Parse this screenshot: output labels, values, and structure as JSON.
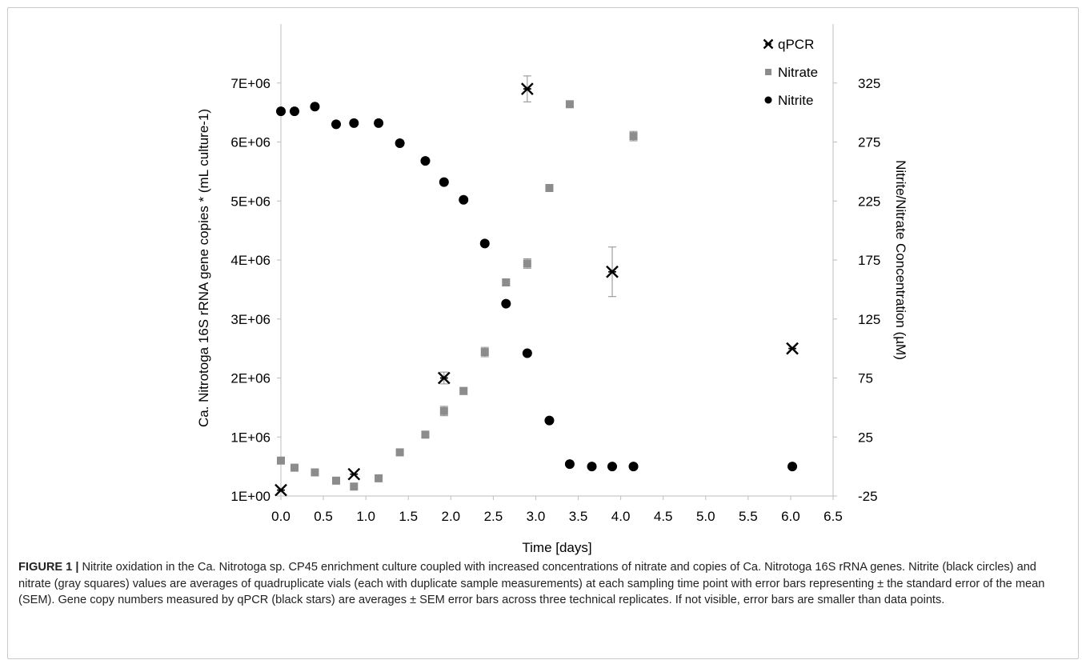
{
  "chart_data": {
    "type": "scatter",
    "xlabel": "Time [days]",
    "ylabel_left": "Ca. Nitrotoga 16S rRNA gene copies * (mL culture-1)",
    "ylabel_right": "Nitrite/Nitrate Concentration (µM)",
    "xlim": [
      0.0,
      6.5
    ],
    "x_ticks": [
      "0.0",
      "0.5",
      "1.0",
      "1.5",
      "2.0",
      "2.5",
      "3.0",
      "3.5",
      "4.0",
      "4.5",
      "5.0",
      "5.5",
      "6.0",
      "6.5"
    ],
    "ylim_left": [
      1,
      8000000
    ],
    "y_ticks_left": [
      "1E+00",
      "1E+06",
      "2E+06",
      "3E+06",
      "4E+06",
      "5E+06",
      "6E+06",
      "7E+06"
    ],
    "ylim_right": [
      -25,
      375
    ],
    "y_ticks_right": [
      "-25",
      "25",
      "75",
      "125",
      "175",
      "225",
      "275",
      "325"
    ],
    "grid": false,
    "legend_position": "top-right",
    "legend": [
      "qPCR",
      "Nitrate",
      "Nitrite"
    ],
    "series": [
      {
        "name": "qPCR",
        "axis": "left",
        "marker": "star",
        "color": "#000000",
        "points": [
          {
            "x": 0.0,
            "y": 100000,
            "err": 0
          },
          {
            "x": 0.86,
            "y": 370000,
            "err": 0
          },
          {
            "x": 1.92,
            "y": 2000000,
            "err": 100000
          },
          {
            "x": 2.9,
            "y": 6900000,
            "err": 220000
          },
          {
            "x": 3.9,
            "y": 3800000,
            "err": 420000
          },
          {
            "x": 6.02,
            "y": 2500000,
            "err": 0
          }
        ]
      },
      {
        "name": "Nitrate",
        "axis": "right",
        "marker": "square",
        "color": "#8c8c8c",
        "points": [
          {
            "x": 0.0,
            "y": 5,
            "err": 0
          },
          {
            "x": 0.16,
            "y": -1,
            "err": 0
          },
          {
            "x": 0.4,
            "y": -5,
            "err": 0
          },
          {
            "x": 0.65,
            "y": -12,
            "err": 0
          },
          {
            "x": 0.86,
            "y": -17,
            "err": 0
          },
          {
            "x": 1.15,
            "y": -10,
            "err": 0
          },
          {
            "x": 1.4,
            "y": 12,
            "err": 0
          },
          {
            "x": 1.7,
            "y": 27,
            "err": 2
          },
          {
            "x": 1.92,
            "y": 47,
            "err": 4
          },
          {
            "x": 2.15,
            "y": 64,
            "err": 3
          },
          {
            "x": 2.4,
            "y": 97,
            "err": 4
          },
          {
            "x": 2.65,
            "y": 156,
            "err": 3
          },
          {
            "x": 2.9,
            "y": 172,
            "err": 4
          },
          {
            "x": 3.16,
            "y": 236,
            "err": 3
          },
          {
            "x": 3.4,
            "y": 307,
            "err": 0
          },
          {
            "x": 4.15,
            "y": 280,
            "err": 4
          }
        ]
      },
      {
        "name": "Nitrite",
        "axis": "right",
        "marker": "circle",
        "color": "#000000",
        "points": [
          {
            "x": 0.0,
            "y": 301,
            "err": 0
          },
          {
            "x": 0.16,
            "y": 301,
            "err": 0
          },
          {
            "x": 0.4,
            "y": 305,
            "err": 0
          },
          {
            "x": 0.65,
            "y": 290,
            "err": 0
          },
          {
            "x": 0.86,
            "y": 291,
            "err": 0
          },
          {
            "x": 1.15,
            "y": 291,
            "err": 0
          },
          {
            "x": 1.4,
            "y": 274,
            "err": 0
          },
          {
            "x": 1.7,
            "y": 259,
            "err": 0
          },
          {
            "x": 1.92,
            "y": 241,
            "err": 0
          },
          {
            "x": 2.15,
            "y": 226,
            "err": 0
          },
          {
            "x": 2.4,
            "y": 189,
            "err": 0
          },
          {
            "x": 2.65,
            "y": 138,
            "err": 0
          },
          {
            "x": 2.9,
            "y": 96,
            "err": 0
          },
          {
            "x": 3.16,
            "y": 39,
            "err": 0
          },
          {
            "x": 3.4,
            "y": 2,
            "err": 0
          },
          {
            "x": 3.66,
            "y": 0,
            "err": 0
          },
          {
            "x": 3.9,
            "y": 0,
            "err": 0
          },
          {
            "x": 4.15,
            "y": 0,
            "err": 0
          },
          {
            "x": 6.02,
            "y": 0,
            "err": 0
          }
        ]
      }
    ]
  },
  "caption": {
    "label": "FIGURE 1 |",
    "text": " Nitrite oxidation in the Ca. Nitrotoga sp. CP45 enrichment culture coupled with increased concentrations of nitrate and copies of Ca. Nitrotoga 16S rRNA genes. Nitrite (black circles) and nitrate (gray squares) values are averages of quadruplicate vials (each with duplicate sample measurements) at each sampling time point with error bars representing ± the standard error of the mean (SEM). Gene copy numbers measured by qPCR (black stars) are averages ± SEM error bars across three technical replicates. If not visible, error bars are smaller than data points."
  }
}
